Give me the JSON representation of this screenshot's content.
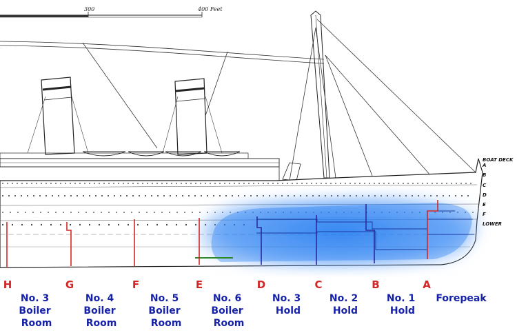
{
  "scale": {
    "mark_300": "300",
    "mark_400": "400 Feet"
  },
  "deck_labels": [
    "BOAT DECK",
    "A",
    "B",
    "C",
    "D",
    "E",
    "F",
    "LOWER"
  ],
  "bulkheads": [
    {
      "letter": "H",
      "flooded": false
    },
    {
      "letter": "G",
      "flooded": false
    },
    {
      "letter": "F",
      "flooded": false
    },
    {
      "letter": "E",
      "flooded": false
    },
    {
      "letter": "D",
      "flooded": true
    },
    {
      "letter": "C",
      "flooded": true
    },
    {
      "letter": "B",
      "flooded": true
    },
    {
      "letter": "A",
      "flooded": false
    }
  ],
  "compartments": [
    {
      "lines": [
        "No. 3",
        "Boiler",
        "Room"
      ]
    },
    {
      "lines": [
        "No. 4",
        "Boiler",
        "Room"
      ]
    },
    {
      "lines": [
        "No. 5",
        "Boiler",
        "Room"
      ]
    },
    {
      "lines": [
        "No. 6",
        "Boiler",
        "Room"
      ]
    },
    {
      "lines": [
        "No. 3",
        "Hold"
      ]
    },
    {
      "lines": [
        "No. 2",
        "Hold"
      ]
    },
    {
      "lines": [
        "No. 1",
        "Hold"
      ]
    },
    {
      "lines": [
        "Forepeak"
      ]
    }
  ],
  "colors": {
    "bulkhead_dry": "#d42626",
    "bulkhead_flooded": "#2a2aa0",
    "flood": "#1e78f0",
    "label": "#1622a8",
    "ink": "#222222"
  }
}
